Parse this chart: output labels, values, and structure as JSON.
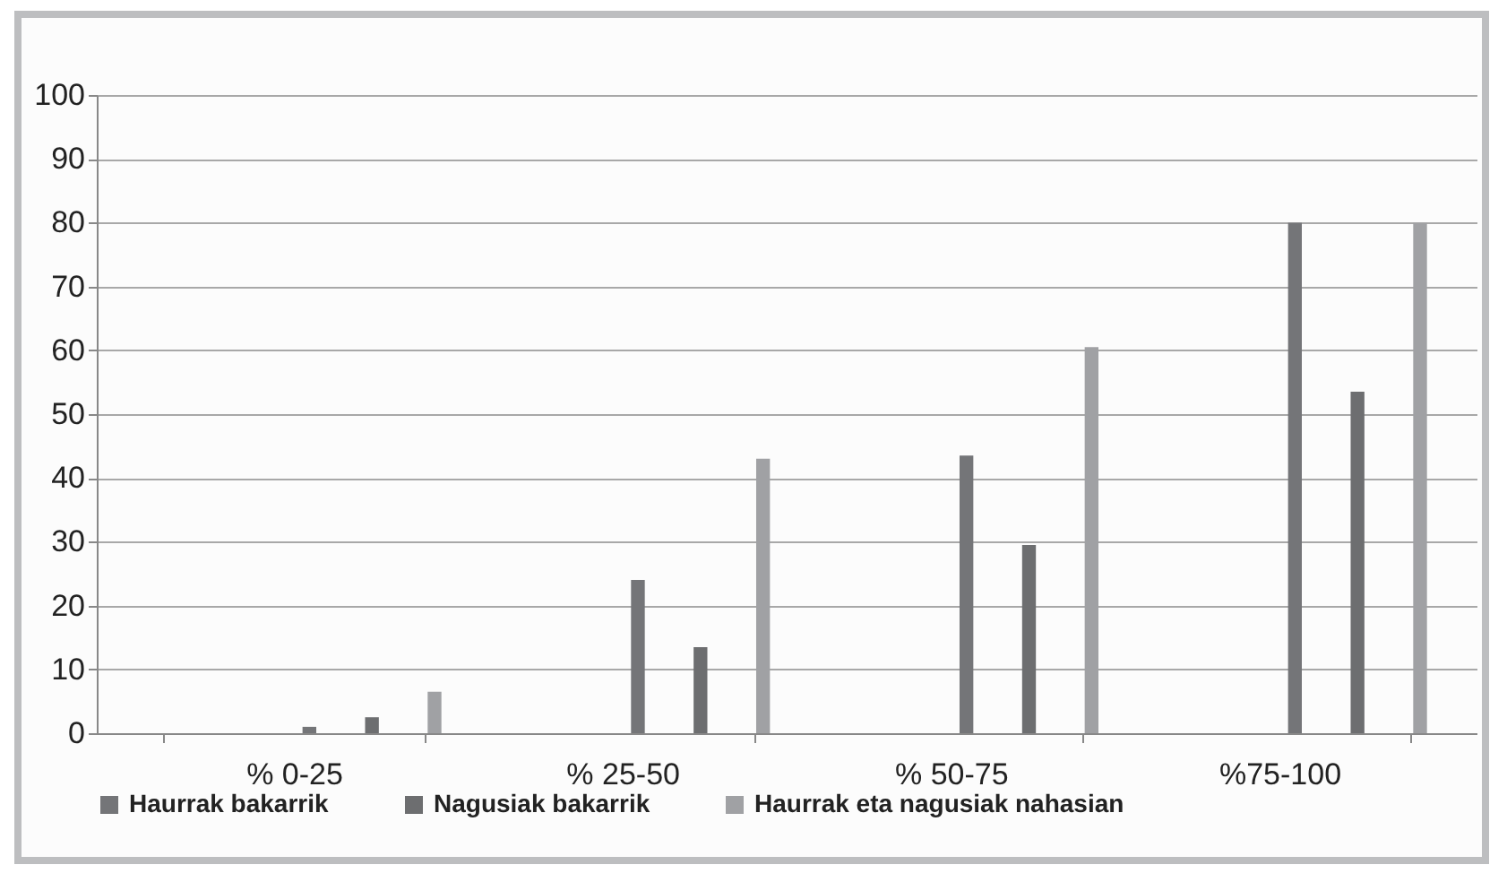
{
  "chart_data": {
    "type": "bar",
    "categories": [
      "% 0-25",
      "% 25-50",
      "% 50-75",
      "%75-100"
    ],
    "series": [
      {
        "name": "Haurrak bakarrik",
        "color": "#747578",
        "values": [
          1,
          24,
          43.5,
          80
        ]
      },
      {
        "name": "Nagusiak bakarrik",
        "color": "#6d6e70",
        "values": [
          2.5,
          13.5,
          29.5,
          53.5
        ]
      },
      {
        "name": "Haurrak eta nagusiak nahasian",
        "color": "#a0a1a4",
        "values": [
          6.5,
          43,
          60.5,
          80
        ]
      }
    ],
    "ylim": [
      0,
      100
    ],
    "yticks": [
      0,
      10,
      20,
      30,
      40,
      50,
      60,
      70,
      80,
      90,
      100
    ],
    "grid": "y",
    "legend": "bottom"
  }
}
